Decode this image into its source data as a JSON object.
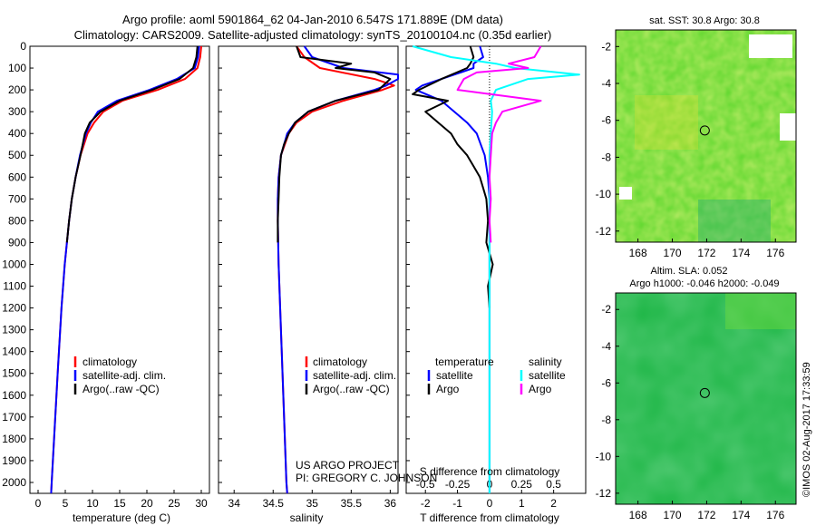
{
  "header": {
    "line1": "Argo profile: aoml 5901864_62 04-Jan-2010 6.547S 171.889E (DM data)",
    "line2": "Climatology: CARS2009. Satellite-adjusted climatology: synTS_20100104.nc (0.35d earlier)"
  },
  "colors": {
    "climatology": "#ff0000",
    "satellite_adj": "#0000ff",
    "argo": "#000000",
    "s_satellite": "#00ffff",
    "s_argo": "#ff00ff",
    "green_field": "#33cc33"
  },
  "legends": {
    "temp": [
      "climatology",
      "satellite-adj. clim.",
      "Argo(..raw -QC)"
    ],
    "sal": [
      "climatology",
      "satellite-adj. clim.",
      "Argo(..raw -QC)"
    ],
    "diff_temp_title": "temperature",
    "diff_sal_title": "salinity",
    "diff_temp": [
      "satellite",
      "Argo"
    ],
    "diff_sal": [
      "satellite",
      "Argo"
    ]
  },
  "credits": {
    "project": "US ARGO PROJECT",
    "pi": "PI: GREGORY C. JOHNSON"
  },
  "maps": {
    "sst_title": "sat. SST: 30.8 Argo: 30.8",
    "sla_title1": "Altim. SLA: 0.052",
    "sla_title2": "Argo h1000: -0.046 h2000: -0.049",
    "x_ticks": [
      "168",
      "170",
      "172",
      "174",
      "176"
    ],
    "y_ticks_sst": [
      "-2",
      "-4",
      "-6",
      "-8",
      "-10",
      "-12"
    ],
    "y_ticks_sla": [
      "-2",
      "-4",
      "-6",
      "-8",
      "-10",
      "-12"
    ]
  },
  "watermark": "©IMOS 02-Aug-2017 17:33:59",
  "chart_data": [
    {
      "type": "line",
      "panel": "temperature",
      "xlabel": "temperature (deg C)",
      "xlim": [
        -1.5,
        31.5
      ],
      "ylim": [
        0,
        2050
      ],
      "x_ticks": [
        0,
        5,
        10,
        15,
        20,
        25,
        30
      ],
      "y_ticks": [
        0,
        100,
        200,
        300,
        400,
        500,
        600,
        700,
        800,
        900,
        1000,
        1100,
        1200,
        1300,
        1400,
        1500,
        1600,
        1700,
        1800,
        1900,
        2000
      ],
      "series": [
        {
          "name": "climatology",
          "color": "#ff0000",
          "depth": [
            0,
            50,
            100,
            150,
            200,
            250,
            300,
            350,
            400,
            500,
            600,
            700,
            800,
            1000,
            1200,
            1500,
            2000,
            2050
          ],
          "values": [
            30.0,
            29.8,
            29.3,
            27.0,
            22.0,
            15.5,
            12.0,
            10.3,
            9.1,
            7.8,
            6.9,
            6.2,
            5.7,
            4.9,
            4.3,
            3.6,
            2.5,
            2.4
          ]
        },
        {
          "name": "satellite-adj. clim.",
          "color": "#0000ff",
          "depth": [
            0,
            50,
            100,
            150,
            200,
            250,
            300,
            350,
            400,
            500,
            600,
            700,
            800,
            1000,
            1200,
            1500,
            2000,
            2050
          ],
          "values": [
            29.6,
            29.4,
            28.8,
            25.5,
            20.5,
            14.5,
            11.0,
            9.7,
            8.8,
            7.7,
            6.9,
            6.2,
            5.7,
            4.9,
            4.3,
            3.6,
            2.5,
            2.4
          ]
        },
        {
          "name": "Argo(..raw -QC)",
          "color": "#000000",
          "depth": [
            0,
            50,
            100,
            150,
            200,
            250,
            300,
            350,
            400,
            450,
            500,
            600,
            700,
            800,
            900
          ],
          "values": [
            29.3,
            29.1,
            28.5,
            26.0,
            21.0,
            15.0,
            11.5,
            9.5,
            8.6,
            8.2,
            7.8,
            6.9,
            6.2,
            5.7,
            5.3
          ]
        }
      ]
    },
    {
      "type": "line",
      "panel": "salinity",
      "xlabel": "salinity",
      "xlim": [
        33.8,
        36.1
      ],
      "ylim": [
        0,
        2050
      ],
      "x_ticks": [
        34,
        34.5,
        35,
        35.5,
        36
      ],
      "series": [
        {
          "name": "climatology",
          "color": "#ff0000",
          "depth": [
            0,
            50,
            100,
            150,
            180,
            200,
            250,
            300,
            350,
            400,
            500,
            600,
            700,
            800,
            1000,
            1200,
            1500,
            2000,
            2050
          ],
          "values": [
            34.8,
            34.9,
            35.1,
            35.8,
            36.05,
            35.9,
            35.4,
            35.0,
            34.8,
            34.7,
            34.6,
            34.57,
            34.56,
            34.56,
            34.57,
            34.59,
            34.62,
            34.67,
            34.68
          ]
        },
        {
          "name": "satellite-adj. clim.",
          "color": "#0000ff",
          "depth": [
            0,
            50,
            100,
            130,
            150,
            180,
            200,
            250,
            300,
            350,
            400,
            500,
            600,
            700,
            800,
            1000,
            1200,
            1500,
            2000,
            2050
          ],
          "values": [
            34.9,
            35.0,
            35.4,
            36.1,
            36.1,
            35.95,
            35.8,
            35.3,
            34.95,
            34.78,
            34.68,
            34.6,
            34.57,
            34.56,
            34.56,
            34.57,
            34.59,
            34.62,
            34.67,
            34.68
          ]
        },
        {
          "name": "Argo(..raw -QC)",
          "color": "#000000",
          "depth": [
            0,
            50,
            80,
            100,
            120,
            150,
            200,
            250,
            300,
            350,
            400,
            450,
            500,
            600,
            700,
            800,
            900
          ],
          "values": [
            34.8,
            34.85,
            35.5,
            35.3,
            35.8,
            36.0,
            35.85,
            35.3,
            34.95,
            34.78,
            34.7,
            34.64,
            34.6,
            34.58,
            34.57,
            34.56,
            34.56
          ]
        }
      ]
    },
    {
      "type": "line",
      "panel": "differences",
      "xlabel": "T difference from climatology",
      "xlabel2": "S difference from climatology",
      "xlim": [
        -2.6,
        3.0
      ],
      "x_ticks": [
        -2,
        -1,
        0,
        1,
        2
      ],
      "x2_ticks": [
        -0.5,
        -0.25,
        0,
        0.25,
        0.5
      ],
      "x2_tick_labels": [
        "-0.5",
        "-0.25",
        "0",
        "0.25",
        "0.5"
      ],
      "series": [
        {
          "name": "T satellite",
          "color": "#0000ff",
          "depth": [
            0,
            50,
            80,
            100,
            150,
            180,
            200,
            250,
            300,
            350,
            400,
            500,
            600,
            700,
            800,
            1000,
            1200,
            1500,
            2000,
            2050
          ],
          "values": [
            -0.3,
            -0.2,
            -0.5,
            -0.5,
            -1.5,
            -2.1,
            -2.3,
            -1.5,
            -1.1,
            -0.7,
            -0.4,
            -0.15,
            -0.05,
            0,
            0,
            0,
            0,
            0,
            0,
            0
          ]
        },
        {
          "name": "T Argo",
          "color": "#000000",
          "depth": [
            0,
            50,
            80,
            100,
            150,
            200,
            220,
            250,
            300,
            350,
            400,
            450,
            500,
            550,
            600,
            650,
            700,
            800,
            900,
            1000,
            1100,
            1200
          ],
          "values": [
            -0.6,
            -0.5,
            -0.6,
            -0.7,
            -1.5,
            -2.2,
            -2.4,
            -1.3,
            -2.0,
            -1.6,
            -1.2,
            -1.0,
            -0.7,
            -0.5,
            -0.3,
            -0.2,
            -0.1,
            -0.05,
            -0.1,
            0.1,
            -0.05,
            0
          ]
        },
        {
          "name": "S satellite",
          "color": "#00ffff",
          "depth": [
            0,
            50,
            80,
            100,
            130,
            150,
            200,
            250,
            300,
            400,
            500,
            600,
            800,
            1000,
            1500,
            2000,
            2050
          ],
          "values": [
            -0.6,
            -0.3,
            0.05,
            0.2,
            0.7,
            0.3,
            0.05,
            0.01,
            0.02,
            0.01,
            0,
            0,
            0,
            0,
            0,
            0,
            0
          ]
        },
        {
          "name": "S Argo",
          "color": "#ff00ff",
          "depth": [
            0,
            50,
            80,
            100,
            120,
            150,
            200,
            250,
            300,
            350,
            400,
            500,
            600,
            700,
            800,
            900
          ],
          "values": [
            0.4,
            0.35,
            0.15,
            0.3,
            -0.1,
            -0.2,
            -0.25,
            0.4,
            0.1,
            0.05,
            0.02,
            0.01,
            0.0,
            0.01,
            0.0,
            0.01
          ]
        }
      ]
    },
    {
      "type": "heatmap",
      "panel": "sst_map",
      "title": "sat. SST: 30.8 Argo: 30.8",
      "xlim": [
        166.7,
        177.2
      ],
      "ylim": [
        -12.6,
        -1.1
      ],
      "marker": {
        "lon": 171.889,
        "lat": -6.547
      }
    },
    {
      "type": "heatmap",
      "panel": "sla_map",
      "title": "Altim. SLA: 0.052",
      "xlim": [
        166.7,
        177.2
      ],
      "ylim": [
        -12.6,
        -1.1
      ],
      "marker": {
        "lon": 171.889,
        "lat": -6.547
      }
    }
  ]
}
